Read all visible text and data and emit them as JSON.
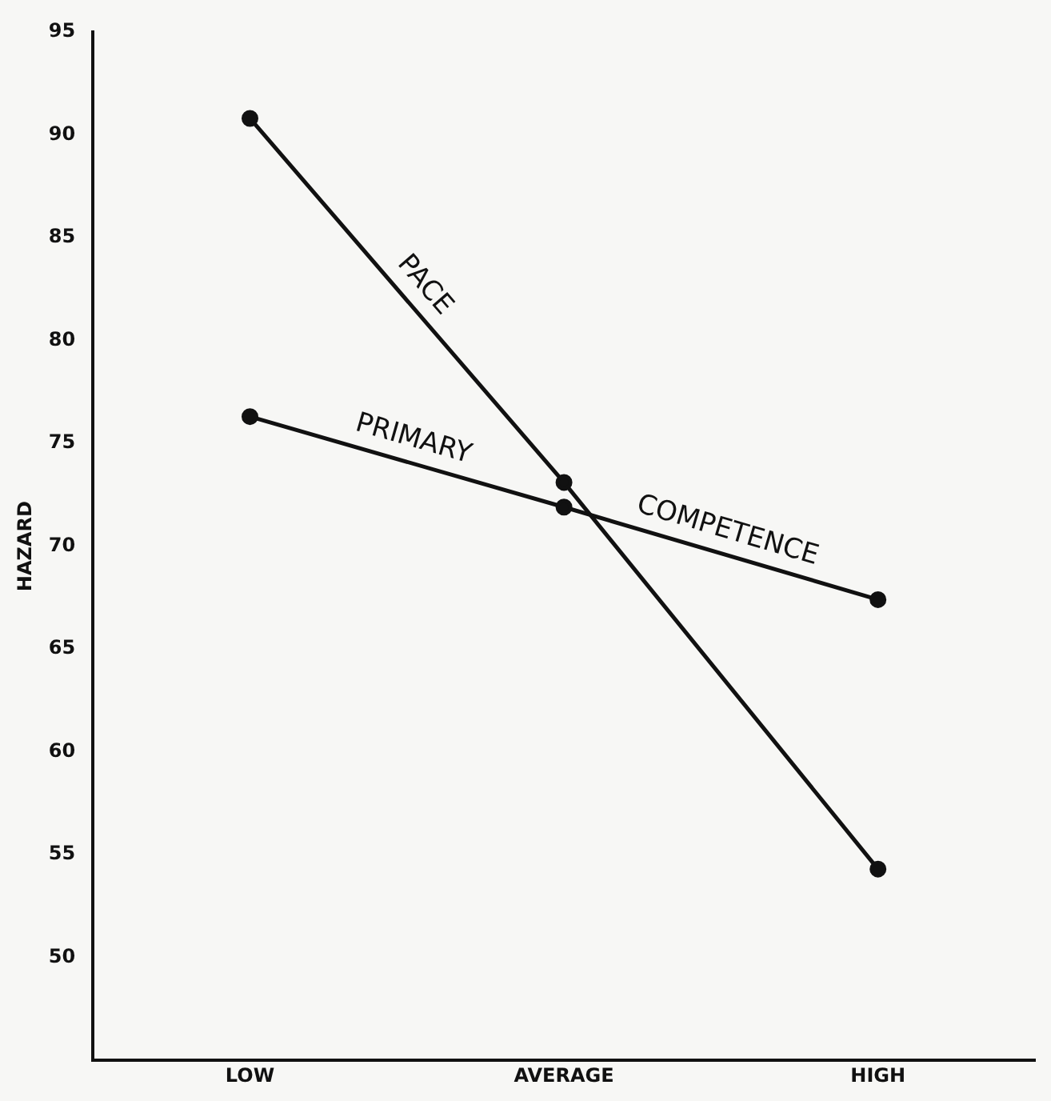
{
  "chart_data": {
    "type": "line",
    "ylabel": "HAZARD",
    "categories": [
      "LOW",
      "AVERAGE",
      "HIGH"
    ],
    "series": [
      {
        "name": "PACE",
        "color": "#111111",
        "values": [
          90.8,
          73.1,
          54.3
        ]
      },
      {
        "name": "PRIMARY COMPETENCE",
        "color": "#111111",
        "values": [
          76.3,
          71.9,
          67.4
        ]
      }
    ],
    "ylim": [
      45,
      95
    ],
    "yticks": [
      50,
      55,
      60,
      65,
      70,
      75,
      80,
      85,
      90,
      95
    ],
    "grid": false,
    "legend": false,
    "marker": "circle",
    "line_style": "solid"
  }
}
